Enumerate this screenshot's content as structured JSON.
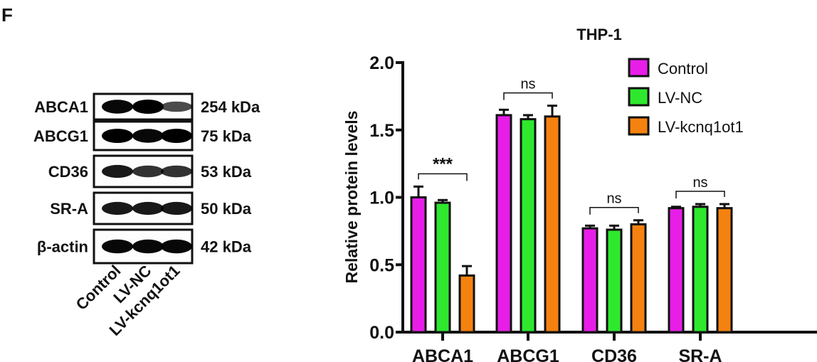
{
  "panel_label": "F",
  "blot": {
    "rows": [
      {
        "protein": "ABCA1",
        "size": "254 kDa",
        "intensity": [
          0.95,
          1.0,
          0.55
        ]
      },
      {
        "protein": "ABCG1",
        "size": "75 kDa",
        "intensity": [
          1.0,
          0.95,
          1.0
        ]
      },
      {
        "protein": "CD36",
        "size": "53 kDa",
        "intensity": [
          0.85,
          0.7,
          0.7
        ]
      },
      {
        "protein": "SR-A",
        "size": "50 kDa",
        "intensity": [
          0.85,
          0.85,
          0.85
        ]
      },
      {
        "protein": "β-actin",
        "size": "42 kDa",
        "intensity": [
          0.95,
          0.95,
          0.95
        ]
      }
    ],
    "lanes": [
      "Control",
      "LV-NC",
      "LV-kcnq1ot1"
    ]
  },
  "chart_data": {
    "type": "bar",
    "title": "THP-1",
    "ylabel": "Relative protein levels",
    "xlabel": "",
    "ylim": [
      0,
      2.0
    ],
    "yticks": [
      "0.0",
      "0.5",
      "1.0",
      "1.5",
      "2.0"
    ],
    "categories": [
      "ABCA1",
      "ABCG1",
      "CD36",
      "SR-A"
    ],
    "legend_position": "top-right",
    "series": [
      {
        "name": "Control",
        "color": "#e81ee8",
        "values": [
          1.0,
          1.61,
          0.77,
          0.92
        ],
        "errors": [
          0.08,
          0.04,
          0.02,
          0.01
        ]
      },
      {
        "name": "LV-NC",
        "color": "#2ee82e",
        "values": [
          0.96,
          1.58,
          0.76,
          0.93
        ],
        "errors": [
          0.02,
          0.03,
          0.03,
          0.02
        ]
      },
      {
        "name": "LV-kcnq1ot1",
        "color": "#f5820f",
        "values": [
          0.42,
          1.6,
          0.8,
          0.92
        ],
        "errors": [
          0.07,
          0.08,
          0.03,
          0.03
        ]
      }
    ],
    "significance": [
      {
        "category": "ABCA1",
        "label": "***",
        "from": "Control",
        "to": "LV-kcnq1ot1"
      },
      {
        "category": "ABCG1",
        "label": "ns",
        "from": "Control",
        "to": "LV-kcnq1ot1"
      },
      {
        "category": "CD36",
        "label": "ns",
        "from": "Control",
        "to": "LV-kcnq1ot1"
      },
      {
        "category": "SR-A",
        "label": "ns",
        "from": "Control",
        "to": "LV-kcnq1ot1"
      }
    ]
  }
}
